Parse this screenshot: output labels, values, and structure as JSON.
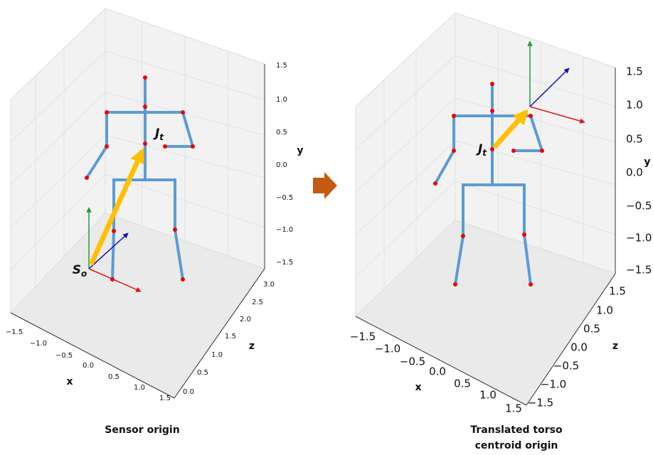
{
  "panels": [
    {
      "x_label": "x",
      "y_label": "y",
      "z_label": "z",
      "x_ticks": [
        "−1.5",
        "−1.0",
        "−0.5",
        "0.0",
        "0.5",
        "1.0",
        "1.5"
      ],
      "y_ticks": [
        "1.5",
        "1.0",
        "0.5",
        "0.0",
        "−0.5",
        "−1.0",
        "−1.5"
      ],
      "z_ticks": [
        "3.0",
        "2.5",
        "2.0",
        "1.5",
        "1.0",
        "0.5",
        "0.0"
      ],
      "joint_label": {
        "base": "J",
        "sub": "t"
      },
      "origin_label": {
        "base": "S",
        "sub": "o"
      },
      "caption": [
        "Sensor origin"
      ]
    },
    {
      "x_label": "x",
      "y_label": "y",
      "z_label": "z",
      "x_ticks": [
        "−1.5",
        "−1.0",
        "−0.5",
        "0.0",
        "0.5",
        "1.0",
        "1.5"
      ],
      "y_ticks": [
        "1.5",
        "1.0",
        "0.5",
        "0.0",
        "−0.5",
        "−1.0",
        "−1.5"
      ],
      "z_ticks": [
        "1.5",
        "1.0",
        "0.5",
        "0.0",
        "−0.5",
        "−1.0",
        "−1.5"
      ],
      "joint_label": {
        "base": "J",
        "sub": "t"
      },
      "caption": [
        "Translated torso",
        "centroid origin"
      ]
    }
  ]
}
